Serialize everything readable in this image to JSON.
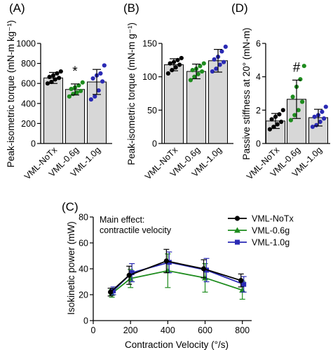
{
  "chart_data": [
    {
      "panel": "(A)",
      "type": "bar",
      "ylabel": "Peak-isometric torque (mN-m kg⁻¹)",
      "ylim": [
        0,
        1000
      ],
      "yticks": [
        0,
        200,
        400,
        600,
        800,
        1000
      ],
      "categories": [
        "VML-NoTx",
        "VML-0.6g",
        "VML-1.0g"
      ],
      "values": [
        655,
        540,
        615
      ],
      "sd": [
        55,
        55,
        125
      ],
      "colors": [
        "#000000",
        "#1e8c1e",
        "#2a2ab4"
      ],
      "significance": [
        {
          "category": "VML-0.6g",
          "label": "*"
        }
      ],
      "points": [
        [
          600,
          615,
          640,
          655,
          665,
          680,
          700,
          720
        ],
        [
          470,
          495,
          510,
          525,
          545,
          560,
          580,
          610
        ],
        [
          440,
          470,
          530,
          620,
          650,
          680,
          700,
          780
        ]
      ]
    },
    {
      "panel": "(B)",
      "type": "bar",
      "ylabel": "Peak-isometric torque (mN-m g⁻¹)",
      "ylim": [
        0,
        150
      ],
      "yticks": [
        0,
        50,
        100,
        150
      ],
      "categories": [
        "VML-NoTx",
        "VML-0.6g",
        "VML-1.0g"
      ],
      "values": [
        118,
        108,
        124
      ],
      "sd": [
        9,
        11,
        17
      ],
      "colors": [
        "#000000",
        "#1e8c1e",
        "#2a2ab4"
      ],
      "points": [
        [
          105,
          110,
          114,
          118,
          120,
          122,
          125,
          128
        ],
        [
          95,
          100,
          104,
          108,
          110,
          112,
          116,
          120
        ],
        [
          108,
          112,
          118,
          122,
          126,
          130,
          138,
          145
        ]
      ]
    },
    {
      "panel": "(D)",
      "type": "bar",
      "ylabel": "Passive stiffness at 20° (mN-m)",
      "ylim": [
        0,
        6
      ],
      "yticks": [
        0,
        2,
        4,
        6
      ],
      "categories": [
        "VML-NoTx",
        "VML-0.6g",
        "VML-1.0g"
      ],
      "values": [
        1.35,
        2.65,
        1.55
      ],
      "sd": [
        0.45,
        1.15,
        0.5
      ],
      "colors": [
        "#000000",
        "#1e8c1e",
        "#2a2ab4"
      ],
      "significance": [
        {
          "category": "VML-0.6g",
          "label": "#"
        }
      ],
      "points": [
        [
          0.85,
          1.0,
          1.15,
          1.3,
          1.45,
          1.6,
          1.75,
          2.0
        ],
        [
          1.4,
          1.7,
          2.0,
          2.5,
          2.8,
          3.4,
          3.85,
          4.65
        ],
        [
          1.0,
          1.1,
          1.3,
          1.5,
          1.6,
          1.7,
          1.9,
          2.2
        ]
      ]
    },
    {
      "panel": "(C)",
      "type": "line",
      "xlabel": "Contraction Velocity (°/s)",
      "ylabel": "Isokinetic power (mW)",
      "xlim": [
        0,
        850
      ],
      "ylim": [
        0,
        80
      ],
      "xticks": [
        0,
        200,
        400,
        600,
        800
      ],
      "yticks": [
        0,
        20,
        40,
        60,
        80
      ],
      "annotation": [
        "Main effect:",
        "contractile velocity"
      ],
      "legend_position": "top-right",
      "x": [
        100,
        200,
        400,
        600,
        800
      ],
      "series": [
        {
          "name": "VML-NoTx",
          "color": "#000000",
          "marker": "circle",
          "values": [
            22,
            35,
            46,
            40,
            31
          ],
          "sd": [
            3,
            7,
            9,
            7,
            5
          ]
        },
        {
          "name": "VML-0.6g",
          "color": "#1e8c1e",
          "marker": "triangle",
          "values": [
            21,
            32.5,
            38.5,
            33,
            23.5
          ],
          "sd": [
            3,
            7,
            13,
            11,
            7
          ]
        },
        {
          "name": "VML-1.0g",
          "color": "#2a2ab4",
          "marker": "square",
          "values": [
            23,
            37,
            45,
            39,
            28
          ],
          "sd": [
            3,
            7,
            8,
            9,
            6
          ]
        }
      ]
    }
  ]
}
